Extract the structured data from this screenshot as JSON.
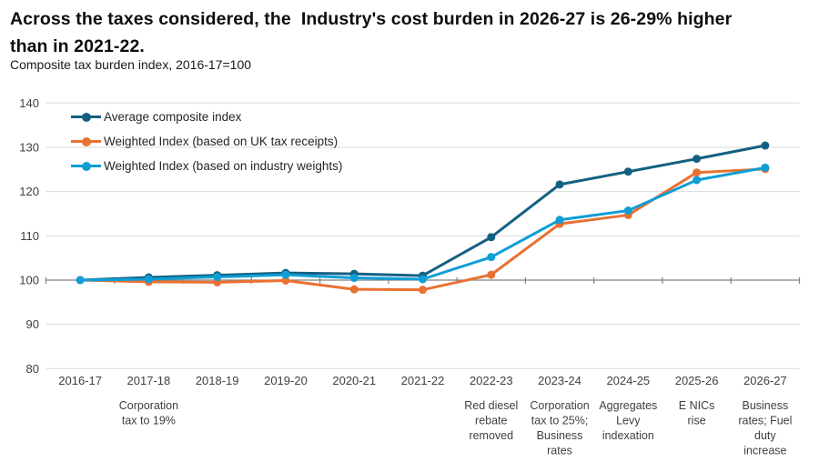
{
  "chart_data": {
    "type": "line",
    "title": "Across the taxes considered, the  Industry's cost burden in 2026-27 is 26-29% higher than in 2021-22.",
    "subtitle": "Composite tax burden index, 2016-17=100",
    "categories": [
      "2016-17",
      "2017-18",
      "2018-19",
      "2019-20",
      "2020-21",
      "2021-22",
      "2022-23",
      "2023-24",
      "2024-25",
      "2025-26",
      "2026-27"
    ],
    "series": [
      {
        "name": "Average composite index",
        "color": "#156082",
        "values": [
          100,
          100.6,
          101.1,
          101.6,
          101.4,
          101.0,
          109.7,
          121.6,
          124.5,
          127.4,
          130.4
        ]
      },
      {
        "name": "Weighted Index (based on UK tax receipts)",
        "color": "#E97132",
        "values": [
          100,
          99.6,
          99.5,
          99.9,
          97.9,
          97.8,
          101.2,
          112.7,
          114.7,
          124.3,
          125.1
        ]
      },
      {
        "name": "Weighted Index (based on industry weights)",
        "color": "#0F9ED5",
        "values": [
          100,
          100.2,
          100.7,
          101.2,
          100.5,
          100.2,
          105.2,
          113.6,
          115.7,
          122.6,
          125.4
        ]
      }
    ],
    "ylim": [
      80,
      140
    ],
    "yticks": [
      80,
      90,
      100,
      110,
      120,
      130,
      140
    ],
    "xlabel": "",
    "ylabel": "",
    "grid": "horizontal",
    "axis_cross_value": 100,
    "legend_position": "top-left-inside",
    "annotations": [
      {
        "category": "2017-18",
        "lines": [
          "Corporation",
          "tax to 19%"
        ]
      },
      {
        "category": "2022-23",
        "lines": [
          "Red diesel",
          "rebate",
          "removed"
        ]
      },
      {
        "category": "2023-24",
        "lines": [
          "Corporation",
          "tax to 25%;",
          "Business",
          "rates"
        ]
      },
      {
        "category": "2024-25",
        "lines": [
          "Aggregates",
          "Levy",
          "indexation"
        ]
      },
      {
        "category": "2025-26",
        "lines": [
          "E NICs",
          "rise"
        ]
      },
      {
        "category": "2026-27",
        "lines": [
          "Business",
          "rates; Fuel",
          "duty",
          "increase"
        ]
      }
    ],
    "colors": {
      "gridline": "#d9d9d9",
      "axis_line": "#808080",
      "axis_text": "#404040",
      "annotation_text": "#404040"
    }
  }
}
